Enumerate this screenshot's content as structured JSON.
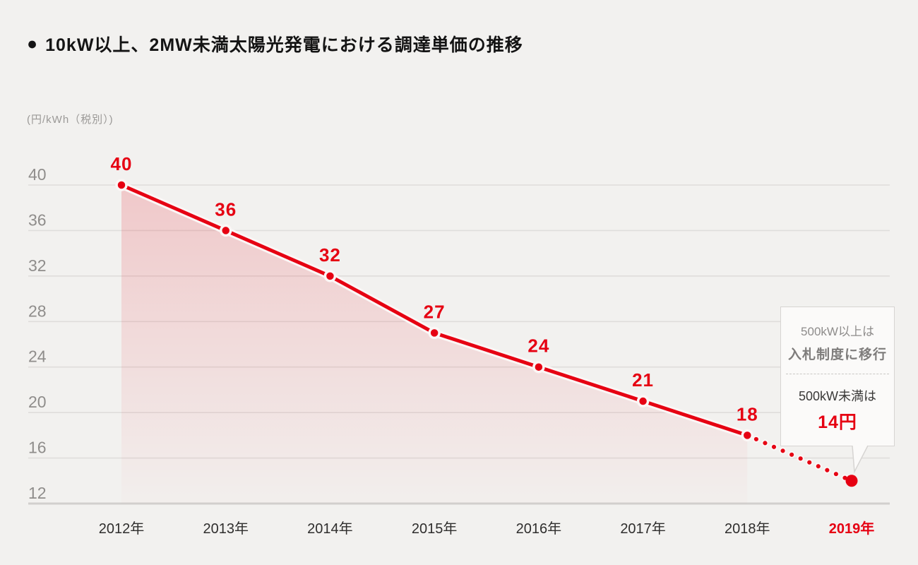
{
  "header": {
    "bullet": "●",
    "title": "10kW以上、2MW未満太陽光発電における調達単価の推移"
  },
  "chart_data": {
    "type": "line",
    "title": "10kW以上、2MW未満太陽光発電における調達単価の推移",
    "ylabel_unit": "(円/kWh（税別）)",
    "categories": [
      "2012年",
      "2013年",
      "2014年",
      "2015年",
      "2016年",
      "2017年",
      "2018年",
      "2019年"
    ],
    "values": [
      40,
      36,
      32,
      27,
      24,
      21,
      18,
      14
    ],
    "solid_through_index": 6,
    "dotted_segment": {
      "from": "2018年",
      "to": "2019年"
    },
    "value_labels_shown": [
      40,
      36,
      32,
      27,
      24,
      21,
      18
    ],
    "y_ticks": [
      40,
      36,
      32,
      28,
      24,
      20,
      16,
      12
    ],
    "ylim": [
      12,
      40
    ],
    "grid": true,
    "legend": false,
    "highlight_last_category": true,
    "area_fill": true,
    "colors": {
      "accent": "#e60012",
      "grid": "#dfdddb",
      "axis_bottom": "#d2d0ce",
      "y_tick_text": "#8f8d8b",
      "x_tick_text": "#2f2e2d",
      "halo": "#fbf6f5"
    }
  },
  "callout": {
    "over_label": "500kW以上は",
    "bidding_label": "入札制度に移行",
    "under_label": "500kW未満は",
    "price_label": "14円"
  }
}
